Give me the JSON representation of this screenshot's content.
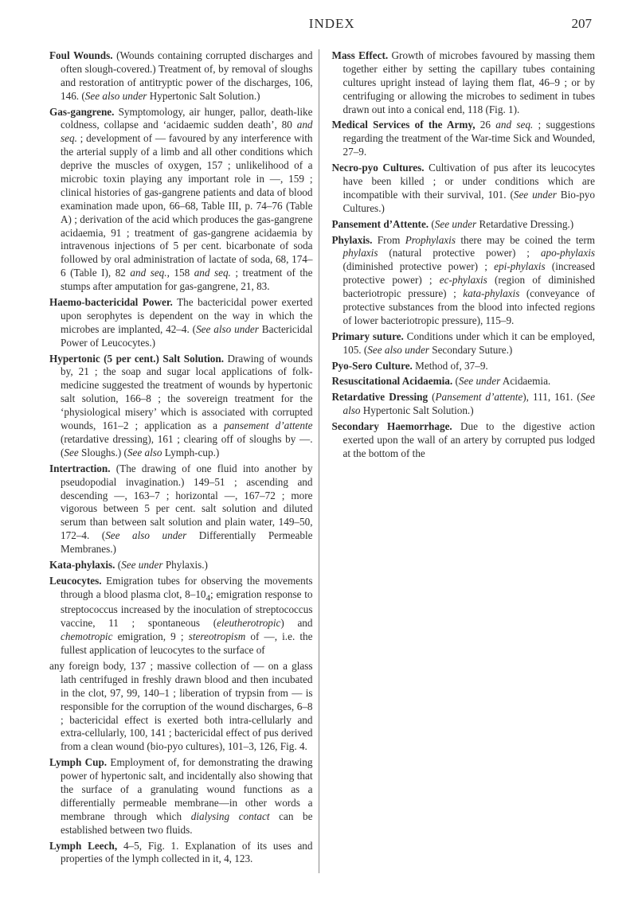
{
  "header": {
    "title": "INDEX",
    "page": "207"
  },
  "entries": [
    {
      "term": "Foul Wounds.",
      "html": " (Wounds containing corrupted discharges and often slough-covered.) Treatment of, by removal of sloughs and restoration of antitryptic power of the discharges, 106, 146. (<span class='ital'>See also under</span> Hypertonic Salt Solution.)"
    },
    {
      "term": "Gas-gangrene.",
      "html": " Symptomology, air hunger, pallor, death-like coldness, collapse and ‘acidaemic sudden death’, 80 <span class='ital'>and seq.</span> ; development of — favoured by any interference with the arterial supply of a limb and all other conditions which deprive the muscles of oxygen, 157 ; unlikelihood of a microbic toxin playing any important role in —, 159 ; clinical histories of gas-gangrene patients and data of blood examination made upon, 66–68, Table III, p. 74–76 (Table A) ; derivation of the acid which produces the gas-gangrene acidaemia, 91 ; treatment of gas-gangrene acidaemia by intravenous injections of 5 per cent. bicarbonate of soda followed by oral administration of lactate of soda, 68, 174–6 (Table I), 82 <span class='ital'>and seq.</span>, 158 <span class='ital'>and seq.</span> ; treatment of the stumps after amputation for gas-gangrene, 21, 83."
    },
    {
      "term": "Haemo-bactericidal Power.",
      "html": " The bactericidal power exerted upon serophytes is dependent on the way in which the microbes are implanted, 42–4. (<span class='ital'>See also under</span> Bactericidal Power of Leucocytes.)"
    },
    {
      "term": "Hypertonic (5 per cent.) Salt Solution.",
      "html": " Drawing of wounds by, 21 ; the soap and sugar local applications of folk-medicine suggested the treatment of wounds by hypertonic salt solution, 166–8 ; the sovereign treatment for the ‘physiological misery’ which is associated with corrupted wounds, 161–2 ; application as a <span class='ital'>pansement d’attente</span> (retardative dressing), 161 ; clearing off of sloughs by —. (<span class='ital'>See</span> Sloughs.) (<span class='ital'>See also</span> Lymph-cup.)"
    },
    {
      "term": "Intertraction.",
      "html": " (The drawing of one fluid into another by pseudopodial invagination.) 149–51 ; ascending and descending —, 163–7 ; horizontal —, 167–72 ; more vigorous between 5 per cent. salt solution and diluted serum than between salt solution and plain water, 149–50, 172–4. (<span class='ital'>See also under</span> Differentially Permeable Membranes.)"
    },
    {
      "term": "Kata-phylaxis.",
      "html": " (<span class='ital'>See under</span> Phylaxis.)"
    },
    {
      "term": "Leucocytes.",
      "html": " Emigration tubes for observing the movements through a blood plasma clot, 8–10<sub>4</sub>; emigration response to streptococcus increased by the inoculation of streptococcus vaccine, 11 ; spontaneous (<span class='ital'>eleutherotropic</span>) and <span class='ital'>chemotropic</span> emigration, 9 ; <span class='ital'>stereotropism</span> of —, i.e. the fullest application of leucocytes to the surface of"
    },
    {
      "term": "",
      "html": "any foreign body, 137 ; massive collection of — on a glass lath centrifuged in freshly drawn blood and then incubated in the clot, 97, 99, 140–1 ; liberation of trypsin from — is responsible for the corruption of the wound discharges, 6–8 ; bactericidal effect is exerted both intra-cellularly and extra-cellularly, 100, 141 ; bactericidal effect of pus derived from a clean wound (bio-pyo cultures), 101–3, 126, Fig. 4."
    },
    {
      "term": "Lymph Cup.",
      "html": " Employment of, for demonstrating the drawing power of hypertonic salt, and incidentally also showing that the surface of a granulating wound functions as a differentially permeable membrane—in other words a membrane through which <span class='ital'>dialysing contact</span> can be established between two fluids."
    },
    {
      "term": "Lymph Leech,",
      "html": " 4–5, Fig. 1. Explanation of its uses and properties of the lymph collected in it, 4, 123."
    },
    {
      "term": "Mass Effect.",
      "html": " Growth of microbes favoured by massing them together either by setting the capillary tubes containing cultures upright instead of laying them flat, 46–9 ; or by centrifuging or allowing the microbes to sediment in tubes drawn out into a conical end, 118 (Fig. 1)."
    },
    {
      "term": "Medical Services of the Army,",
      "html": " 26 <span class='ital'>and seq.</span> ; suggestions regarding the treatment of the War-time Sick and Wounded, 27–9."
    },
    {
      "term": "Necro-pyo Cultures.",
      "html": " Cultivation of pus after its leucocytes have been killed ; or under conditions which are incompatible with their survival, 101. (<span class='ital'>See under</span> Bio-pyo Cultures.)"
    },
    {
      "term": "Pansement d’Attente.",
      "html": " (<span class='ital'>See under</span> Retardative Dressing.)"
    },
    {
      "term": "Phylaxis.",
      "html": " From <span class='ital'>Prophylaxis</span> there may be coined the term <span class='ital'>phylaxis</span> (natural protective power) ; <span class='ital'>apo-phylaxis</span> (diminished protective power) ; <span class='ital'>epi-phylaxis</span> (increased protective power) ; <span class='ital'>ec-phylaxis</span> (region of diminished bacteriotropic pressure) ; <span class='ital'>kata-phylaxis</span> (conveyance of protective substances from the blood into infected regions of lower bacteriotropic pressure), 115–9."
    },
    {
      "term": "Primary suture.",
      "html": " Conditions under which it can be employed, 105. (<span class='ital'>See also under</span> Secondary Suture.)"
    },
    {
      "term": "Pyo-Sero Culture.",
      "html": " Method of, 37–9."
    },
    {
      "term": "Resuscitational Acidaemia.",
      "html": " (<span class='ital'>See under</span> Acidaemia."
    },
    {
      "term": "Retardative Dressing",
      "html": " (<span class='ital'>Pansement d’attente</span>), 111, 161. (<span class='ital'>See also</span> Hypertonic Salt Solution.)"
    },
    {
      "term": "Secondary Haemorrhage.",
      "html": " Due to the digestive action exerted upon the wall of an artery by corrupted pus lodged at the bottom of the"
    }
  ]
}
